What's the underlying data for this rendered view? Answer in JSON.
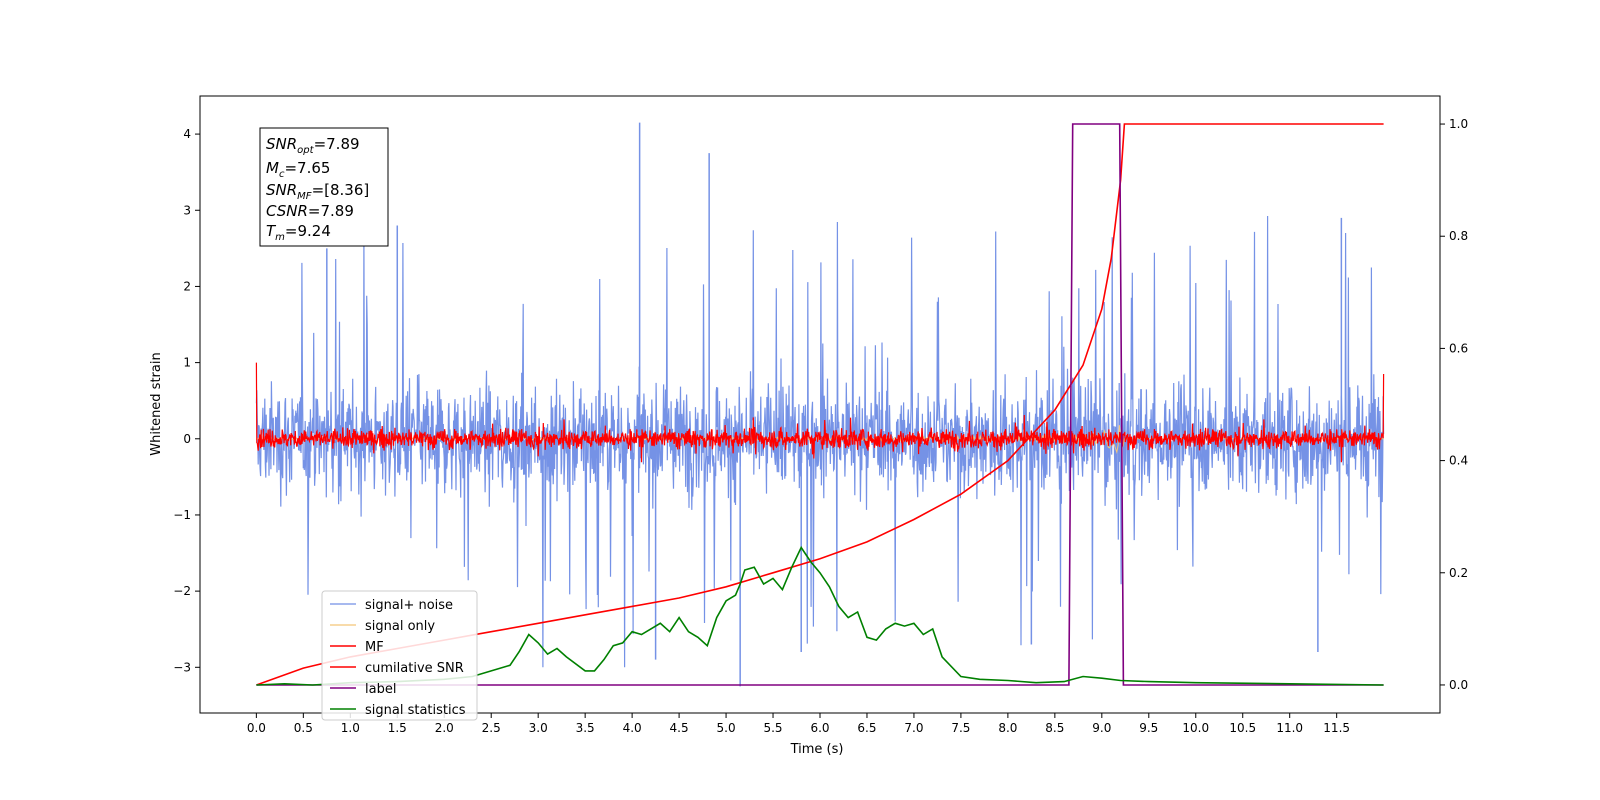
{
  "chart_data": {
    "type": "line",
    "xlabel": "Time (s)",
    "ylabel": "Whitened strain",
    "xlim": [
      -0.6,
      12.6
    ],
    "xticks": [
      "0.0",
      "0.5",
      "1.0",
      "1.5",
      "2.0",
      "2.5",
      "3.0",
      "3.5",
      "4.0",
      "4.5",
      "5.0",
      "5.5",
      "6.0",
      "6.5",
      "7.0",
      "7.5",
      "8.0",
      "8.5",
      "9.0",
      "9.5",
      "10.0",
      "10.5",
      "11.0",
      "11.5"
    ],
    "ylim_left": [
      -3.6,
      4.5
    ],
    "yticks_left": [
      "4",
      "3",
      "2",
      "1",
      "0",
      "−1",
      "−2",
      "−3"
    ],
    "ylim_right": [
      -0.05,
      1.05
    ],
    "yticks_right": [
      "1.0",
      "0.8",
      "0.6",
      "0.4",
      "0.2",
      "0.0"
    ],
    "annotation": {
      "snr_opt": "=7.89",
      "mc": "=7.65",
      "snr_mf": "=[8.36]",
      "csnr": "=7.89",
      "tm": "=9.24"
    },
    "legend_position": "lower-left",
    "series": [
      {
        "name": "signal+ noise",
        "color": "#7592e6",
        "axis": "left",
        "description_kind": "noise",
        "amplitude": 0.9,
        "peak_points": [
          [
            0.75,
            2.5
          ],
          [
            1.5,
            2.8
          ],
          [
            4.08,
            4.15
          ],
          [
            4.25,
            -2.9
          ],
          [
            4.82,
            3.75
          ],
          [
            5.15,
            -3.25
          ],
          [
            5.8,
            -2.8
          ],
          [
            8.25,
            -2.7
          ],
          [
            11.55,
            2.9
          ],
          [
            11.3,
            -2.8
          ]
        ]
      },
      {
        "name": "signal only",
        "color": "#f5c77a",
        "axis": "left",
        "description_kind": "chirp",
        "chirp_end": 9.24,
        "max_amplitude": 0.65
      },
      {
        "name": "MF",
        "color": "#ff0000",
        "axis": "left",
        "description_kind": "noise",
        "amplitude": 0.18,
        "edge_values": [
          [
            0.0,
            1.0
          ],
          [
            12.0,
            0.85
          ]
        ]
      },
      {
        "name": "cumilative SNR",
        "color": "#ff0000",
        "axis": "right",
        "x": [
          0.0,
          0.5,
          1.0,
          1.5,
          2.0,
          2.5,
          3.0,
          3.5,
          4.0,
          4.5,
          5.0,
          5.5,
          6.0,
          6.5,
          7.0,
          7.5,
          8.0,
          8.5,
          8.8,
          9.0,
          9.1,
          9.2,
          9.24,
          9.3,
          12.0
        ],
        "y": [
          0.0,
          0.03,
          0.05,
          0.065,
          0.08,
          0.095,
          0.11,
          0.125,
          0.14,
          0.155,
          0.175,
          0.2,
          0.225,
          0.255,
          0.295,
          0.34,
          0.4,
          0.49,
          0.57,
          0.67,
          0.76,
          0.9,
          1.0,
          1.0,
          1.0
        ]
      },
      {
        "name": "label",
        "color": "#800080",
        "axis": "right",
        "x": [
          0.0,
          8.65,
          8.69,
          9.19,
          9.23,
          12.0
        ],
        "y": [
          0.0,
          0.0,
          1.0,
          1.0,
          0.0,
          0.0
        ]
      },
      {
        "name": "signal statistics",
        "color": "#008000",
        "axis": "right",
        "x": [
          0.0,
          0.3,
          0.6,
          1.0,
          1.5,
          2.0,
          2.3,
          2.5,
          2.7,
          2.8,
          2.9,
          3.0,
          3.1,
          3.2,
          3.3,
          3.5,
          3.6,
          3.7,
          3.8,
          3.9,
          4.0,
          4.1,
          4.2,
          4.3,
          4.4,
          4.5,
          4.6,
          4.7,
          4.8,
          4.9,
          5.0,
          5.1,
          5.15,
          5.2,
          5.3,
          5.4,
          5.5,
          5.6,
          5.7,
          5.8,
          5.9,
          6.0,
          6.1,
          6.2,
          6.3,
          6.4,
          6.5,
          6.6,
          6.7,
          6.8,
          6.9,
          7.0,
          7.1,
          7.2,
          7.3,
          7.5,
          7.7,
          8.0,
          8.3,
          8.6,
          8.8,
          9.0,
          9.2,
          9.5,
          10.0,
          11.0,
          12.0
        ],
        "y": [
          0.0,
          0.002,
          0.0,
          0.004,
          0.006,
          0.01,
          0.015,
          0.025,
          0.035,
          0.06,
          0.09,
          0.075,
          0.055,
          0.065,
          0.05,
          0.025,
          0.025,
          0.045,
          0.07,
          0.075,
          0.095,
          0.09,
          0.1,
          0.11,
          0.095,
          0.12,
          0.095,
          0.085,
          0.07,
          0.12,
          0.15,
          0.16,
          0.18,
          0.205,
          0.21,
          0.18,
          0.19,
          0.17,
          0.21,
          0.245,
          0.22,
          0.2,
          0.175,
          0.14,
          0.12,
          0.13,
          0.085,
          0.08,
          0.1,
          0.11,
          0.105,
          0.11,
          0.09,
          0.1,
          0.05,
          0.015,
          0.01,
          0.008,
          0.004,
          0.006,
          0.015,
          0.012,
          0.008,
          0.006,
          0.004,
          0.002,
          0.0
        ]
      }
    ]
  }
}
